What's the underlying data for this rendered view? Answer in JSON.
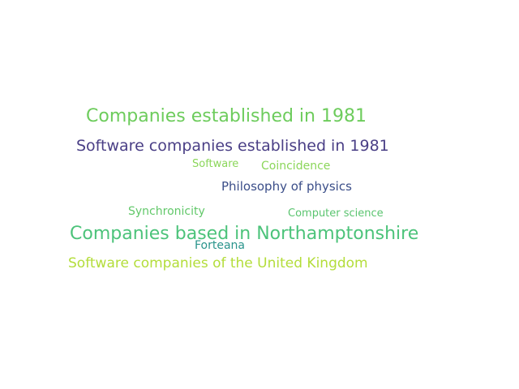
{
  "words": [
    {
      "text": "Companies established in 1981",
      "color": "#6dcc5c"
    },
    {
      "text": "Software companies established in 1981",
      "color": "#4a3f86"
    },
    {
      "text": "Software",
      "color": "#8bd65a"
    },
    {
      "text": "Coincidence",
      "color": "#8bd65a"
    },
    {
      "text": "Philosophy of physics",
      "color": "#3b4e89"
    },
    {
      "text": "Synchronicity",
      "color": "#62c86a"
    },
    {
      "text": "Computer science",
      "color": "#5ac46f"
    },
    {
      "text": "Companies based in Northamptonshire",
      "color": "#4cc37a"
    },
    {
      "text": "Forteana",
      "color": "#2a948c"
    },
    {
      "text": "Software companies of the United Kingdom",
      "color": "#b3dd3a"
    }
  ]
}
